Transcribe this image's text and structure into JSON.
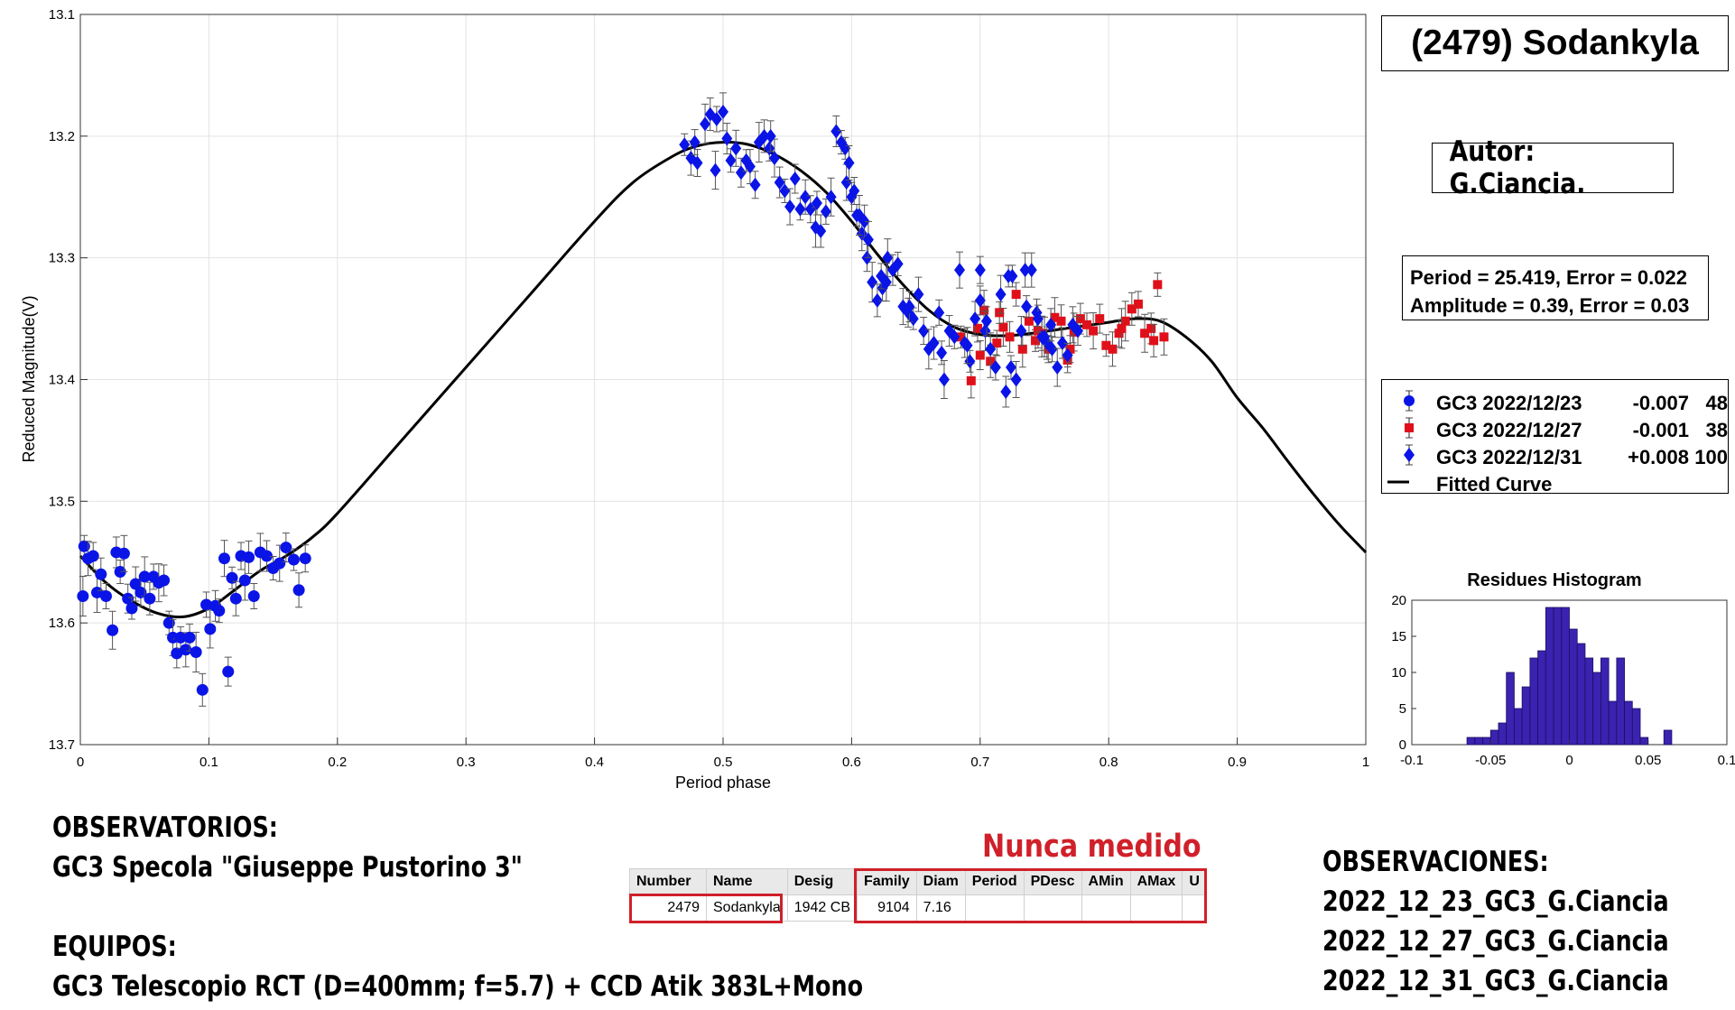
{
  "title": "(2479) Sodankyla",
  "author": "Autor: G.Ciancia.",
  "fit": {
    "period_line": "Period =  25.419, Error = 0.022",
    "amplitude_line": "Amplitude = 0.39, Error = 0.03"
  },
  "colors": {
    "blue": "#0a14e6",
    "red": "#e0101a",
    "curve": "#000000",
    "hist": "#3b22b0",
    "highlight": "#d0202a"
  },
  "legend": [
    {
      "name": "GC3 2022/12/23",
      "offset": "-0.007",
      "count": "48",
      "marker": "circle",
      "color": "#0a14e6"
    },
    {
      "name": "GC3 2022/12/27",
      "offset": "-0.001",
      "count": "38",
      "marker": "square",
      "color": "#e0101a"
    },
    {
      "name": "GC3 2022/12/31",
      "offset": "+0.008",
      "count": "100",
      "marker": "diamond",
      "color": "#0a14e6"
    },
    {
      "name": "Fitted Curve",
      "offset": "",
      "count": "",
      "marker": "line",
      "color": "#000000"
    }
  ],
  "observatorios": {
    "heading": "OBSERVATORIOS:",
    "line": "GC3 Specola \"Giuseppe Pustorino 3\"",
    "equipos_heading": "EQUIPOS:",
    "equipos_line": "GC3 Telescopio RCT (D=400mm; f=5.7) + CCD Atik 383L+Mono"
  },
  "observaciones": {
    "heading": "OBSERVACIONES:",
    "items": [
      "2022_12_23_GC3_G.Ciancia",
      "2022_12_27_GC3_G.Ciancia",
      "2022_12_31_GC3_G.Ciancia"
    ]
  },
  "never_measured": "Nunca medido",
  "table": {
    "headers": [
      "Number",
      "Name",
      "Desig",
      "Family",
      "Diam",
      "Period",
      "PDesc",
      "AMin",
      "AMax",
      "U"
    ],
    "row": [
      "2479",
      "Sodankyla",
      "1942 CB",
      "9104",
      "7.16",
      "",
      "",
      "",
      "",
      ""
    ]
  },
  "chart_data": [
    {
      "type": "scatter",
      "xlabel": "Period phase",
      "ylabel": "Reduced Magnitude(V)",
      "xlim": [
        0,
        1
      ],
      "ylim": [
        13.7,
        13.1
      ],
      "y_reversed": true,
      "grid": true,
      "xticks": [
        "0",
        "0.1",
        "0.2",
        "0.3",
        "0.4",
        "0.5",
        "0.6",
        "0.7",
        "0.8",
        "0.9",
        "1"
      ],
      "yticks": [
        "13.1",
        "13.2",
        "13.3",
        "13.4",
        "13.5",
        "13.6",
        "13.7"
      ],
      "legend_position": "right",
      "fitted_curve": {
        "x": [
          0,
          0.02,
          0.04,
          0.06,
          0.08,
          0.1,
          0.12,
          0.14,
          0.16,
          0.18,
          0.2,
          0.25,
          0.3,
          0.35,
          0.4,
          0.43,
          0.46,
          0.48,
          0.5,
          0.52,
          0.54,
          0.56,
          0.58,
          0.6,
          0.62,
          0.64,
          0.66,
          0.68,
          0.7,
          0.72,
          0.74,
          0.76,
          0.78,
          0.8,
          0.82,
          0.84,
          0.86,
          0.88,
          0.9,
          0.92,
          0.94,
          0.96,
          0.98,
          1.0
        ],
        "y": [
          13.545,
          13.567,
          13.582,
          13.592,
          13.595,
          13.588,
          13.573,
          13.557,
          13.545,
          13.53,
          13.51,
          13.45,
          13.39,
          13.33,
          13.27,
          13.238,
          13.217,
          13.208,
          13.205,
          13.207,
          13.215,
          13.228,
          13.246,
          13.27,
          13.297,
          13.322,
          13.343,
          13.357,
          13.363,
          13.364,
          13.362,
          13.359,
          13.356,
          13.353,
          13.35,
          13.352,
          13.365,
          13.385,
          13.415,
          13.44,
          13.468,
          13.495,
          13.52,
          13.542
        ]
      },
      "series": [
        {
          "name": "GC3 2022/12/23",
          "marker": "circle",
          "x": [
            0.003,
            0.006,
            0.01,
            0.013,
            0.016,
            0.02,
            0.025,
            0.028,
            0.031,
            0.034,
            0.037,
            0.04,
            0.043,
            0.047,
            0.05,
            0.054,
            0.057,
            0.061,
            0.065,
            0.069,
            0.072,
            0.075,
            0.078,
            0.082,
            0.085,
            0.09,
            0.095,
            0.098,
            0.101,
            0.105,
            0.108,
            0.112,
            0.115,
            0.118,
            0.121,
            0.125,
            0.128,
            0.131,
            0.135,
            0.14,
            0.145,
            0.15,
            0.155,
            0.16,
            0.166,
            0.17,
            0.175,
            0.002
          ],
          "y": [
            13.537,
            13.547,
            13.545,
            13.575,
            13.56,
            13.578,
            13.606,
            13.542,
            13.558,
            13.543,
            13.58,
            13.588,
            13.568,
            13.575,
            13.562,
            13.58,
            13.562,
            13.567,
            13.565,
            13.6,
            13.612,
            13.625,
            13.612,
            13.622,
            13.612,
            13.624,
            13.655,
            13.585,
            13.605,
            13.586,
            13.59,
            13.547,
            13.64,
            13.563,
            13.58,
            13.545,
            13.565,
            13.546,
            13.578,
            13.542,
            13.545,
            13.555,
            13.551,
            13.538,
            13.548,
            13.573,
            13.547,
            13.578
          ]
        },
        {
          "name": "GC3 2022/12/27",
          "marker": "square",
          "x": [
            0.685,
            0.693,
            0.698,
            0.703,
            0.708,
            0.713,
            0.718,
            0.723,
            0.728,
            0.733,
            0.738,
            0.743,
            0.748,
            0.753,
            0.758,
            0.763,
            0.768,
            0.773,
            0.778,
            0.783,
            0.788,
            0.793,
            0.798,
            0.803,
            0.808,
            0.813,
            0.818,
            0.823,
            0.828,
            0.833,
            0.838,
            0.843,
            0.7,
            0.715,
            0.745,
            0.77,
            0.81,
            0.835
          ],
          "y": [
            13.365,
            13.401,
            13.358,
            13.343,
            13.385,
            13.37,
            13.357,
            13.365,
            13.33,
            13.375,
            13.352,
            13.368,
            13.362,
            13.375,
            13.349,
            13.352,
            13.384,
            13.361,
            13.35,
            13.355,
            13.36,
            13.35,
            13.372,
            13.375,
            13.362,
            13.352,
            13.342,
            13.338,
            13.362,
            13.358,
            13.322,
            13.365,
            13.38,
            13.345,
            13.36,
            13.375,
            13.358,
            13.368
          ]
        },
        {
          "name": "GC3 2022/12/31",
          "marker": "diamond",
          "x": [
            0.47,
            0.475,
            0.48,
            0.486,
            0.49,
            0.495,
            0.5,
            0.503,
            0.506,
            0.51,
            0.514,
            0.518,
            0.521,
            0.525,
            0.528,
            0.532,
            0.536,
            0.54,
            0.544,
            0.548,
            0.552,
            0.556,
            0.56,
            0.564,
            0.568,
            0.572,
            0.576,
            0.58,
            0.584,
            0.588,
            0.592,
            0.596,
            0.6,
            0.604,
            0.608,
            0.612,
            0.616,
            0.62,
            0.624,
            0.628,
            0.632,
            0.636,
            0.64,
            0.644,
            0.648,
            0.652,
            0.656,
            0.66,
            0.664,
            0.668,
            0.672,
            0.676,
            0.68,
            0.684,
            0.688,
            0.692,
            0.696,
            0.7,
            0.704,
            0.708,
            0.712,
            0.716,
            0.72,
            0.724,
            0.728,
            0.732,
            0.736,
            0.74,
            0.744,
            0.748,
            0.752,
            0.756,
            0.76,
            0.764,
            0.768,
            0.772,
            0.776,
            0.595,
            0.598,
            0.602,
            0.606,
            0.61,
            0.623,
            0.627,
            0.645,
            0.67,
            0.69,
            0.705,
            0.725,
            0.735,
            0.745,
            0.75,
            0.755,
            0.478,
            0.494,
            0.537,
            0.573,
            0.613,
            0.7,
            0.722
          ],
          "y": [
            13.207,
            13.218,
            13.222,
            13.19,
            13.182,
            13.186,
            13.18,
            13.202,
            13.22,
            13.21,
            13.23,
            13.22,
            13.225,
            13.24,
            13.205,
            13.2,
            13.21,
            13.218,
            13.238,
            13.245,
            13.258,
            13.235,
            13.26,
            13.25,
            13.26,
            13.275,
            13.278,
            13.262,
            13.25,
            13.196,
            13.205,
            13.238,
            13.25,
            13.265,
            13.28,
            13.3,
            13.32,
            13.335,
            13.325,
            13.3,
            13.31,
            13.305,
            13.34,
            13.345,
            13.35,
            13.33,
            13.36,
            13.375,
            13.37,
            13.345,
            13.4,
            13.36,
            13.365,
            13.31,
            13.37,
            13.385,
            13.35,
            13.31,
            13.36,
            13.375,
            13.39,
            13.33,
            13.41,
            13.39,
            13.4,
            13.36,
            13.34,
            13.31,
            13.345,
            13.365,
            13.37,
            13.375,
            13.39,
            13.37,
            13.38,
            13.355,
            13.36,
            13.21,
            13.222,
            13.245,
            13.265,
            13.27,
            13.315,
            13.32,
            13.34,
            13.378,
            13.372,
            13.352,
            13.315,
            13.31,
            13.35,
            13.365,
            13.355,
            13.205,
            13.228,
            13.2,
            13.255,
            13.285,
            13.335,
            13.315
          ]
        }
      ]
    },
    {
      "type": "bar",
      "title": "Residues Histogram",
      "xlim": [
        -0.1,
        0.1
      ],
      "ylim": [
        0,
        20
      ],
      "xticks": [
        "-0.1",
        "-0.05",
        "0",
        "0.05",
        "0.1"
      ],
      "yticks": [
        "0",
        "5",
        "10",
        "15",
        "20"
      ],
      "bin_width": 0.005,
      "bin_centers": [
        -0.0625,
        -0.0575,
        -0.0525,
        -0.0475,
        -0.0425,
        -0.0375,
        -0.0325,
        -0.0275,
        -0.0225,
        -0.0175,
        -0.0125,
        -0.0075,
        -0.0025,
        0.0025,
        0.0075,
        0.0125,
        0.0175,
        0.0225,
        0.0275,
        0.0325,
        0.0375,
        0.0425,
        0.0475,
        0.0525,
        0.0575,
        0.0625
      ],
      "values": [
        1,
        1,
        1,
        2,
        3,
        10,
        5,
        8,
        12,
        13,
        19,
        19,
        19,
        16,
        14,
        12,
        10,
        12,
        6,
        12,
        6,
        5,
        1,
        0,
        0,
        2
      ]
    }
  ]
}
